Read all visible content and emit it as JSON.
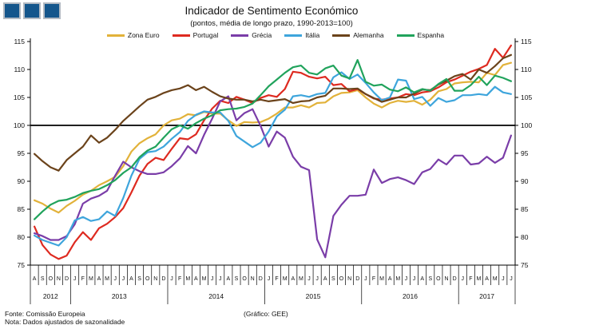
{
  "header": {
    "title": "Indicador de Sentimento Económico",
    "subtitle": "(pontos, média de longo prazo, 1990-2013=100)"
  },
  "logo": {
    "square_color": "#14568c",
    "border_color": "#b3bac3",
    "square_count": 3
  },
  "legend": {
    "items": [
      {
        "label": "Zona Euro",
        "color": "#E2B23A"
      },
      {
        "label": "Portugal",
        "color": "#DE2A20"
      },
      {
        "label": "Grécia",
        "color": "#7A3DA8"
      },
      {
        "label": "Itália",
        "color": "#3EA5DC"
      },
      {
        "label": "Alemanha",
        "color": "#6B431B"
      },
      {
        "label": "Espanha",
        "color": "#21A35C"
      }
    ]
  },
  "chart_data": {
    "type": "line",
    "title": "Indicador de Sentimento Económico",
    "subtitle": "(pontos, média de longo prazo, 1990-2013=100)",
    "xlabel": "",
    "ylabel": "",
    "ylim": [
      75,
      115
    ],
    "yticks": [
      75,
      80,
      85,
      90,
      95,
      100,
      105,
      110,
      115
    ],
    "baseline": 100,
    "grid": false,
    "legend_position": "top",
    "months": [
      "A",
      "S",
      "O",
      "N",
      "D",
      "J",
      "F",
      "M",
      "A",
      "M",
      "J",
      "J",
      "A",
      "S",
      "O",
      "N",
      "D",
      "J",
      "F",
      "M",
      "A",
      "M",
      "J",
      "J",
      "A",
      "S",
      "O",
      "N",
      "D",
      "J",
      "F",
      "M",
      "A",
      "M",
      "J",
      "J",
      "A",
      "S",
      "O",
      "N",
      "D",
      "J",
      "F",
      "M",
      "A",
      "M",
      "J",
      "J",
      "A",
      "S",
      "O",
      "N",
      "D",
      "J",
      "F",
      "M",
      "A",
      "M",
      "J",
      "J"
    ],
    "years": [
      {
        "label": "2012",
        "months": 5
      },
      {
        "label": "2013",
        "months": 12
      },
      {
        "label": "2014",
        "months": 12
      },
      {
        "label": "2015",
        "months": 12
      },
      {
        "label": "2016",
        "months": 12
      },
      {
        "label": "2017",
        "months": 7
      }
    ],
    "series": [
      {
        "name": "Zona Euro",
        "color": "#E2B23A",
        "values": [
          86.6,
          86.0,
          85.1,
          84.4,
          85.6,
          86.5,
          87.6,
          88.3,
          89.3,
          90.0,
          90.8,
          92.7,
          95.3,
          96.8,
          97.7,
          98.4,
          100.0,
          100.9,
          101.2,
          102.0,
          101.8,
          102.4,
          102.1,
          102.1,
          100.9,
          99.9,
          100.6,
          100.5,
          100.6,
          101.2,
          102.1,
          103.2,
          103.2,
          103.6,
          103.2,
          104.0,
          104.1,
          105.2,
          105.8,
          105.9,
          106.3,
          105.0,
          103.9,
          103.2,
          104.0,
          104.4,
          104.2,
          104.4,
          103.7,
          104.6,
          106.1,
          106.5,
          107.5,
          107.7,
          107.8,
          107.7,
          109.4,
          109.0,
          110.8,
          111.2
        ]
      },
      {
        "name": "Portugal",
        "color": "#DE2A20",
        "values": [
          81.9,
          78.6,
          76.9,
          76.1,
          76.7,
          79.1,
          80.9,
          79.5,
          81.6,
          82.4,
          83.6,
          85.2,
          88.0,
          91.0,
          93.1,
          94.2,
          93.8,
          95.8,
          97.7,
          97.5,
          98.4,
          100.9,
          103.0,
          104.4,
          104.0,
          105.1,
          104.6,
          104.0,
          104.9,
          105.4,
          105.1,
          106.5,
          109.6,
          109.4,
          108.7,
          108.4,
          108.7,
          107.2,
          107.4,
          106.1,
          106.5,
          105.6,
          104.8,
          104.6,
          104.8,
          105.0,
          105.6,
          105.4,
          105.9,
          106.1,
          106.8,
          107.7,
          108.2,
          108.9,
          109.6,
          110.1,
          110.8,
          113.7,
          112.1,
          114.3
        ]
      },
      {
        "name": "Grécia",
        "color": "#7A3DA8",
        "values": [
          80.7,
          80.2,
          79.5,
          79.5,
          80.2,
          82.3,
          86.0,
          86.9,
          87.4,
          88.3,
          91.0,
          93.5,
          92.5,
          91.8,
          91.3,
          91.3,
          91.6,
          92.7,
          94.1,
          96.3,
          95.0,
          98.3,
          101.2,
          104.3,
          105.2,
          100.9,
          102.2,
          102.9,
          99.9,
          96.2,
          98.9,
          97.8,
          94.4,
          92.6,
          92.0,
          79.6,
          76.4,
          83.8,
          85.8,
          87.4,
          87.4,
          87.6,
          92.1,
          89.7,
          90.4,
          90.7,
          90.2,
          89.5,
          91.6,
          92.2,
          93.9,
          93.0,
          94.6,
          94.6,
          93.0,
          93.2,
          94.4,
          93.3,
          94.2,
          98.2
        ]
      },
      {
        "name": "Itália",
        "color": "#3EA5DC",
        "values": [
          80.3,
          79.5,
          79.0,
          78.5,
          80.0,
          83.0,
          83.6,
          82.9,
          83.2,
          84.6,
          83.8,
          87.0,
          91.0,
          94.0,
          95.2,
          95.4,
          96.2,
          97.6,
          98.8,
          100.8,
          101.9,
          102.5,
          102.3,
          102.3,
          100.8,
          98.1,
          97.1,
          96.1,
          96.9,
          98.9,
          101.6,
          102.8,
          105.2,
          105.4,
          105.1,
          105.6,
          105.8,
          108.6,
          109.5,
          108.3,
          109.1,
          107.6,
          105.9,
          104.5,
          105.0,
          108.2,
          108.0,
          104.7,
          105.1,
          103.5,
          104.9,
          104.2,
          104.5,
          105.4,
          105.4,
          105.6,
          105.4,
          106.9,
          105.9,
          105.6
        ]
      },
      {
        "name": "Alemanha",
        "color": "#6B431B",
        "values": [
          94.9,
          93.6,
          92.5,
          91.9,
          93.8,
          95.0,
          96.2,
          98.2,
          96.9,
          97.8,
          99.2,
          100.8,
          102.1,
          103.4,
          104.6,
          105.1,
          105.8,
          106.3,
          106.6,
          107.2,
          106.3,
          106.9,
          106.0,
          105.2,
          104.8,
          104.6,
          104.6,
          104.3,
          104.6,
          104.3,
          104.5,
          104.7,
          104.0,
          104.3,
          104.4,
          105.0,
          105.3,
          106.6,
          106.6,
          106.5,
          106.6,
          105.6,
          104.9,
          104.2,
          104.6,
          105.0,
          105.0,
          105.7,
          106.4,
          106.3,
          107.3,
          108.0,
          108.8,
          109.2,
          108.2,
          110.0,
          109.4,
          110.6,
          112.0,
          112.6
        ]
      },
      {
        "name": "Espanha",
        "color": "#21A35C",
        "values": [
          83.2,
          84.6,
          85.8,
          86.5,
          86.7,
          87.2,
          87.9,
          88.3,
          88.6,
          89.3,
          90.2,
          91.5,
          92.5,
          94.3,
          95.5,
          96.2,
          97.8,
          99.3,
          100.0,
          99.4,
          100.4,
          101.2,
          101.8,
          102.7,
          102.9,
          103.0,
          103.3,
          103.9,
          105.4,
          107.0,
          108.2,
          109.4,
          110.4,
          110.7,
          109.4,
          109.1,
          110.2,
          110.7,
          108.9,
          108.4,
          111.7,
          107.8,
          107.1,
          107.3,
          106.4,
          106.1,
          106.8,
          105.9,
          106.5,
          106.2,
          107.4,
          108.3,
          106.2,
          106.2,
          107.2,
          108.7,
          107.2,
          108.9,
          108.5,
          107.9
        ]
      }
    ]
  },
  "footer": {
    "source": "Fonte: Comissão Europeia",
    "note": "Nota: Dados ajustados de sazonalidade",
    "credit": "(Gráfico: GEE)"
  }
}
